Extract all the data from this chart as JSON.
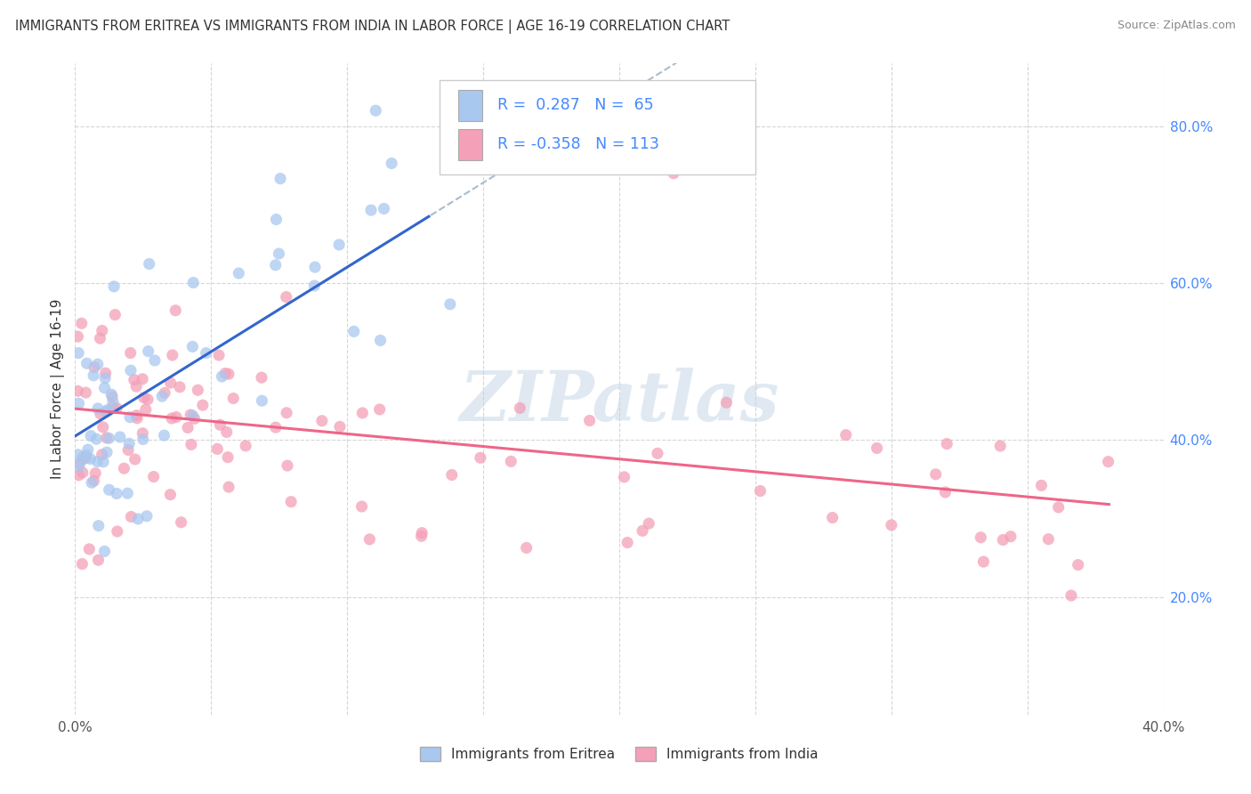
{
  "title": "IMMIGRANTS FROM ERITREA VS IMMIGRANTS FROM INDIA IN LABOR FORCE | AGE 16-19 CORRELATION CHART",
  "source": "Source: ZipAtlas.com",
  "ylabel": "In Labor Force | Age 16-19",
  "xlim": [
    0.0,
    0.4
  ],
  "ylim": [
    0.05,
    0.88
  ],
  "xtick_positions": [
    0.0,
    0.05,
    0.1,
    0.15,
    0.2,
    0.25,
    0.3,
    0.35,
    0.4
  ],
  "xticklabels": [
    "0.0%",
    "",
    "",
    "",
    "",
    "",
    "",
    "",
    "40.0%"
  ],
  "ytick_positions": [
    0.2,
    0.4,
    0.6,
    0.8
  ],
  "yticklabels": [
    "20.0%",
    "40.0%",
    "60.0%",
    "80.0%"
  ],
  "scatter_color_eritrea": "#a8c8f0",
  "scatter_color_india": "#f4a0b8",
  "trend_color_eritrea": "#3366cc",
  "trend_color_india": "#ee6688",
  "trend_dashed_color": "#aabbcc",
  "label_eritrea": "Immigrants from Eritrea",
  "label_india": "Immigrants from India",
  "R_eritrea": 0.287,
  "N_eritrea": 65,
  "R_india": -0.358,
  "N_india": 113,
  "watermark": "ZIPatlas",
  "background_color": "#ffffff",
  "grid_color": "#cccccc",
  "axis_label_color": "#4488ff",
  "tick_color": "#555555"
}
